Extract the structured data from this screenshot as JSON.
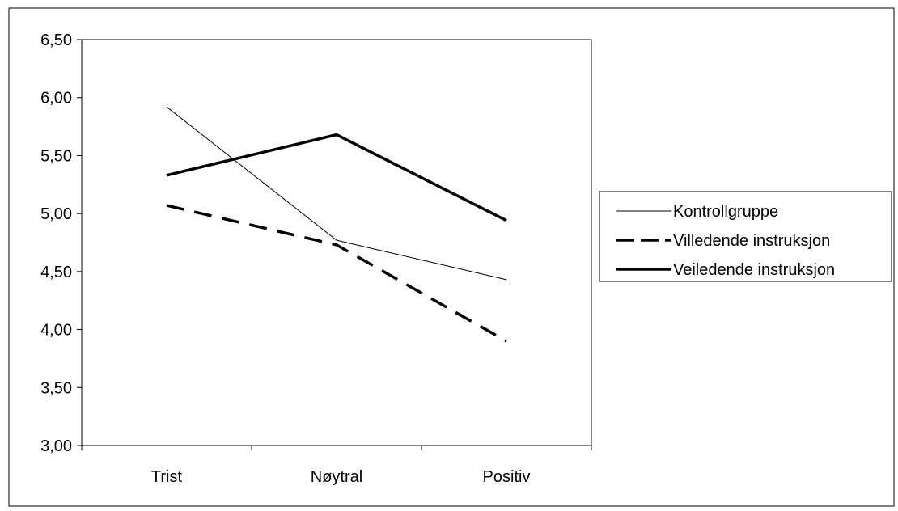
{
  "chart_data": {
    "type": "line",
    "title": "",
    "xlabel": "",
    "ylabel": "",
    "categories": [
      "Trist",
      "Nøytral",
      "Positiv"
    ],
    "ylim": [
      3.0,
      6.5
    ],
    "yticks": [
      "3,00",
      "3,50",
      "4,00",
      "4,50",
      "5,00",
      "5,50",
      "6,00",
      "6,50"
    ],
    "ytick_values": [
      3.0,
      3.5,
      4.0,
      4.5,
      5.0,
      5.5,
      6.0,
      6.5
    ],
    "grid": false,
    "legend_position": "right",
    "series": [
      {
        "name": "Kontrollgruppe",
        "values": [
          5.92,
          4.77,
          4.43
        ],
        "style": "thin-solid",
        "color": "#000000"
      },
      {
        "name": "Villedende instruksjon",
        "values": [
          5.07,
          4.73,
          3.9
        ],
        "style": "dashed",
        "color": "#000000"
      },
      {
        "name": "Veiledende instruksjon",
        "values": [
          5.33,
          5.68,
          4.94
        ],
        "style": "thick-solid",
        "color": "#000000"
      }
    ]
  }
}
